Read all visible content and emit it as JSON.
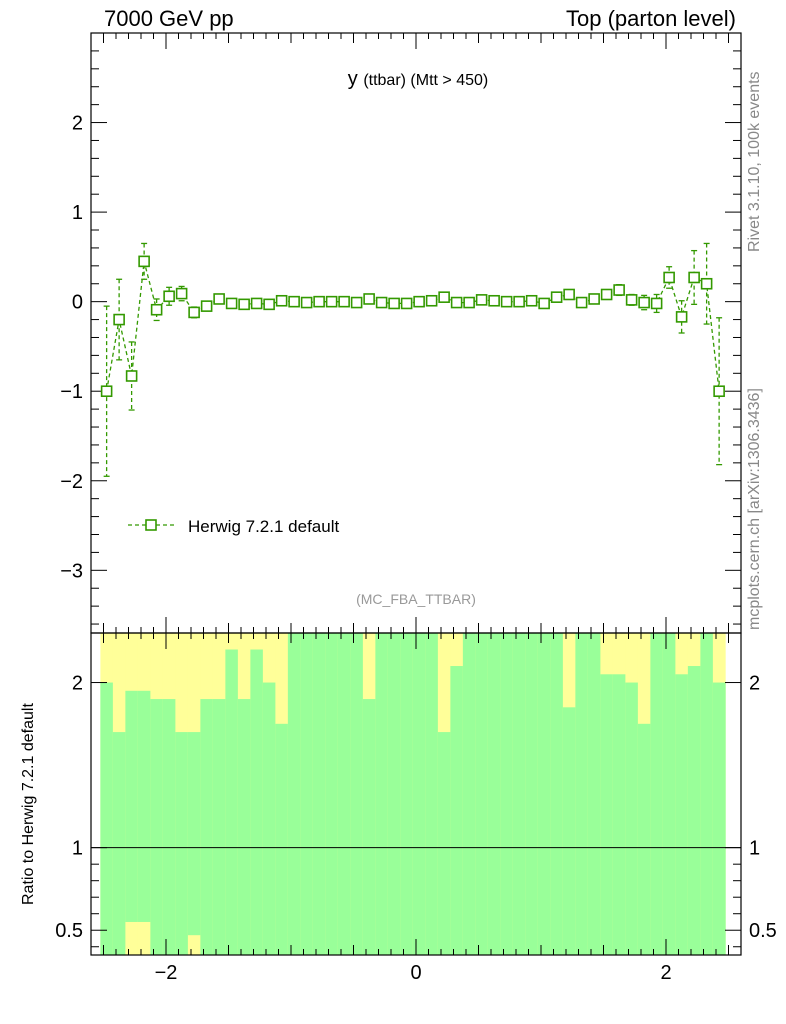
{
  "header": {
    "left": "7000 GeV pp",
    "right": "Top (parton level)"
  },
  "side_labels": {
    "rivet": "Rivet 3.1.10,  100k events",
    "source": "mcplots.cern.ch [arXiv:1306.3436]"
  },
  "ratio_ylabel": "Ratio to Herwig 7.2.1 default",
  "colors": {
    "series": "#339900",
    "band_inner": "#99ff99",
    "band_outer": "#ffff99"
  },
  "chart_data": [
    {
      "type": "line",
      "title": "y (ttbar) (Mtt > 450)",
      "title_main": "y",
      "title_sub": "(ttbar) (Mtt > 450)",
      "tag": "(MC_FBA_TTBAR)",
      "xlim": [
        -2.6,
        2.6
      ],
      "ylim": [
        -3.7,
        3.0
      ],
      "x_ticks": [
        -2,
        0,
        2
      ],
      "y_ticks": [
        -3,
        -2,
        -1,
        0,
        1,
        2
      ],
      "legend": "bottom-left",
      "series": [
        {
          "name": "Herwig 7.2.1 default",
          "style": "dashed-open-square",
          "x": [
            -2.475,
            -2.375,
            -2.275,
            -2.175,
            -2.075,
            -1.975,
            -1.875,
            -1.775,
            -1.675,
            -1.575,
            -1.475,
            -1.375,
            -1.275,
            -1.175,
            -1.075,
            -0.975,
            -0.875,
            -0.775,
            -0.675,
            -0.575,
            -0.475,
            -0.375,
            -0.275,
            -0.175,
            -0.075,
            0.025,
            0.125,
            0.225,
            0.325,
            0.425,
            0.525,
            0.625,
            0.725,
            0.825,
            0.925,
            1.025,
            1.125,
            1.225,
            1.325,
            1.425,
            1.525,
            1.625,
            1.725,
            1.825,
            1.925,
            2.025,
            2.125,
            2.225,
            2.325,
            2.425
          ],
          "y": [
            -1.0,
            -0.2,
            -0.83,
            0.45,
            -0.09,
            0.06,
            0.09,
            -0.12,
            -0.05,
            0.03,
            -0.02,
            -0.03,
            -0.02,
            -0.03,
            0.01,
            0.0,
            -0.01,
            0.0,
            0.0,
            0.0,
            -0.01,
            0.03,
            -0.01,
            -0.02,
            -0.02,
            0.0,
            0.01,
            0.05,
            -0.01,
            -0.01,
            0.02,
            0.01,
            0.0,
            0.0,
            0.01,
            -0.02,
            0.05,
            0.08,
            -0.01,
            0.03,
            0.08,
            0.13,
            0.02,
            -0.01,
            -0.02,
            0.27,
            -0.17,
            0.27,
            0.2,
            -1.0
          ],
          "yerr": [
            0.95,
            0.45,
            0.38,
            0.2,
            0.12,
            0.1,
            0.08,
            0.06,
            0.05,
            0.04,
            0.04,
            0.03,
            0.03,
            0.03,
            0.03,
            0.03,
            0.03,
            0.03,
            0.03,
            0.03,
            0.03,
            0.03,
            0.03,
            0.03,
            0.03,
            0.03,
            0.03,
            0.03,
            0.03,
            0.03,
            0.03,
            0.03,
            0.03,
            0.03,
            0.03,
            0.03,
            0.03,
            0.04,
            0.04,
            0.04,
            0.05,
            0.06,
            0.06,
            0.08,
            0.1,
            0.12,
            0.18,
            0.3,
            0.45,
            0.82
          ]
        }
      ]
    },
    {
      "type": "area",
      "ylabel": "Ratio to Herwig 7.2.1 default",
      "xlim": [
        -2.6,
        2.6
      ],
      "ylim": [
        0.35,
        2.3
      ],
      "x_ticks": [
        -2,
        0,
        2
      ],
      "y_ticks": [
        0.5,
        1,
        2
      ],
      "reference_line": 1,
      "bin_edges": [
        -2.525,
        -2.425,
        -2.325,
        -2.225,
        -2.125,
        -2.025,
        -1.925,
        -1.825,
        -1.725,
        -1.625,
        -1.525,
        -1.425,
        -1.325,
        -1.225,
        -1.125,
        -1.025,
        -0.925,
        -0.825,
        -0.725,
        -0.625,
        -0.525,
        -0.425,
        -0.325,
        -0.225,
        -0.125,
        -0.025,
        0.075,
        0.175,
        0.275,
        0.375,
        0.475,
        0.575,
        0.675,
        0.775,
        0.875,
        0.975,
        1.075,
        1.175,
        1.275,
        1.375,
        1.475,
        1.575,
        1.675,
        1.775,
        1.875,
        1.975,
        2.075,
        2.175,
        2.275,
        2.375,
        2.475
      ],
      "inner_low": [
        0.35,
        0.35,
        0.55,
        0.55,
        0.35,
        0.35,
        0.35,
        0.47,
        0.35,
        0.35,
        0.35,
        0.35,
        0.35,
        0.35,
        0.35,
        0.35,
        0.35,
        0.35,
        0.35,
        0.35,
        0.35,
        0.35,
        0.35,
        0.35,
        0.35,
        0.35,
        0.35,
        0.35,
        0.35,
        0.35,
        0.35,
        0.35,
        0.35,
        0.35,
        0.35,
        0.35,
        0.35,
        0.35,
        0.35,
        0.35,
        0.35,
        0.35,
        0.35,
        0.35,
        0.35,
        0.35,
        0.35,
        0.35,
        0.35,
        0.35
      ],
      "outer_low": [
        0.35,
        0.35,
        0.35,
        0.35,
        0.35,
        0.35,
        0.35,
        0.35,
        0.35,
        0.35,
        0.35,
        0.35,
        0.35,
        0.35,
        0.35,
        0.35,
        0.35,
        0.35,
        0.35,
        0.35,
        0.35,
        0.35,
        0.35,
        0.35,
        0.35,
        0.35,
        0.35,
        0.35,
        0.35,
        0.35,
        0.35,
        0.35,
        0.35,
        0.35,
        0.35,
        0.35,
        0.35,
        0.35,
        0.35,
        0.35,
        0.35,
        0.35,
        0.35,
        0.35,
        0.35,
        0.35,
        0.35,
        0.35,
        0.35,
        0.35
      ],
      "inner_high": [
        2.0,
        1.7,
        1.95,
        1.95,
        1.9,
        1.9,
        1.7,
        1.7,
        1.9,
        1.9,
        2.2,
        1.9,
        2.2,
        2.0,
        1.75,
        2.3,
        2.3,
        2.3,
        2.3,
        2.3,
        2.3,
        1.9,
        2.3,
        2.3,
        2.3,
        2.3,
        2.3,
        1.7,
        2.1,
        2.3,
        2.3,
        2.3,
        2.3,
        2.3,
        2.3,
        2.3,
        2.3,
        1.85,
        2.3,
        2.3,
        2.05,
        2.05,
        2.0,
        1.75,
        2.3,
        2.3,
        2.05,
        2.1,
        2.3,
        2.0
      ],
      "outer_high": [
        2.3,
        2.3,
        2.3,
        2.3,
        2.3,
        2.3,
        2.3,
        2.3,
        2.3,
        2.3,
        2.3,
        2.3,
        2.3,
        2.3,
        2.3,
        2.3,
        2.3,
        2.3,
        2.3,
        2.3,
        2.3,
        2.3,
        2.3,
        2.3,
        2.3,
        2.3,
        2.3,
        2.3,
        2.3,
        2.3,
        2.3,
        2.3,
        2.3,
        2.3,
        2.3,
        2.3,
        2.3,
        2.3,
        2.3,
        2.3,
        2.3,
        2.3,
        2.3,
        2.3,
        2.3,
        2.3,
        2.3,
        2.3,
        2.3,
        2.3
      ]
    }
  ]
}
